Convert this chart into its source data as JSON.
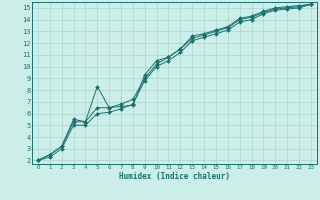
{
  "xlabel": "Humidex (Indice chaleur)",
  "bg_color": "#cceee8",
  "line_color": "#1a7070",
  "grid_color": "#aad4cc",
  "xlim": [
    -0.5,
    23.5
  ],
  "ylim": [
    1.7,
    15.5
  ],
  "xticks": [
    0,
    1,
    2,
    3,
    4,
    5,
    6,
    7,
    8,
    9,
    10,
    11,
    12,
    13,
    14,
    15,
    16,
    17,
    18,
    19,
    20,
    21,
    22,
    23
  ],
  "yticks": [
    2,
    3,
    4,
    5,
    6,
    7,
    8,
    9,
    10,
    11,
    12,
    13,
    14,
    15
  ],
  "line1_x": [
    0,
    1,
    2,
    3,
    4,
    5,
    6,
    7,
    8,
    9,
    10,
    11,
    12,
    13,
    14,
    15,
    16,
    17,
    18,
    19,
    20,
    21,
    22,
    23
  ],
  "line1_y": [
    2,
    2.5,
    3.2,
    5.3,
    5.3,
    8.3,
    6.5,
    6.6,
    6.7,
    9.3,
    10.5,
    10.8,
    11.5,
    12.6,
    12.8,
    13.1,
    13.4,
    14.1,
    14.3,
    14.7,
    15.0,
    15.1,
    15.2,
    15.3
  ],
  "line2_x": [
    0,
    1,
    2,
    3,
    4,
    5,
    6,
    7,
    8,
    9,
    10,
    11,
    12,
    13,
    14,
    15,
    16,
    17,
    18,
    19,
    20,
    21,
    22,
    23
  ],
  "line2_y": [
    2,
    2.5,
    3.2,
    5.5,
    5.3,
    6.5,
    6.5,
    6.8,
    7.2,
    9.0,
    10.2,
    10.8,
    11.5,
    12.4,
    12.7,
    13.0,
    13.3,
    14.0,
    14.2,
    14.6,
    14.9,
    15.0,
    15.1,
    15.3
  ],
  "line3_x": [
    0,
    1,
    2,
    3,
    4,
    5,
    6,
    7,
    8,
    9,
    10,
    11,
    12,
    13,
    14,
    15,
    16,
    17,
    18,
    19,
    20,
    21,
    22,
    23
  ],
  "line3_y": [
    2,
    2.3,
    3.0,
    5.0,
    5.0,
    6.0,
    6.1,
    6.4,
    6.8,
    8.8,
    10.0,
    10.5,
    11.2,
    12.2,
    12.5,
    12.8,
    13.1,
    13.8,
    14.0,
    14.5,
    14.8,
    14.9,
    15.0,
    15.3
  ]
}
